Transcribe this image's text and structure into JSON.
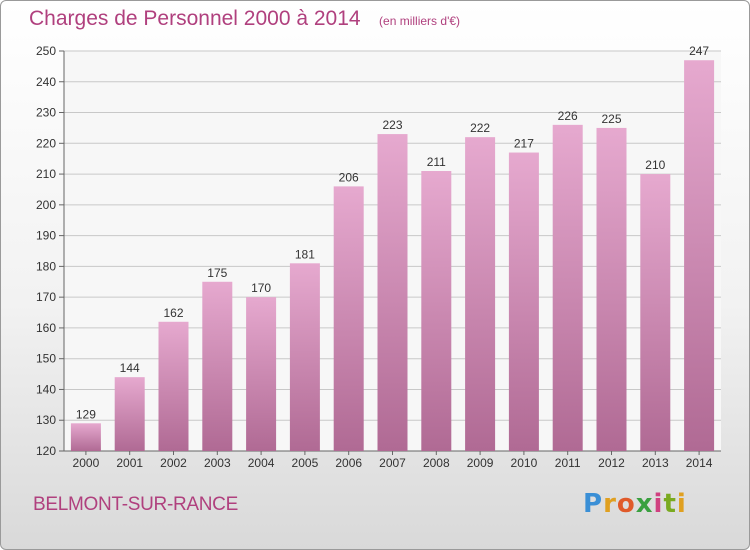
{
  "header": {
    "title": "Charges de Personnel 2000 à 2014",
    "subtitle": "(en milliers d'€)"
  },
  "footer": {
    "town": "BELMONT-SUR-RANCE",
    "logo_text": "Proxiti"
  },
  "colors": {
    "title": "#b0407e",
    "bar_top": "#e6a9cf",
    "bar_bottom": "#b06a94",
    "grid": "#c8c8c8"
  },
  "chart_data": {
    "type": "bar",
    "categories": [
      "2000",
      "2001",
      "2002",
      "2003",
      "2004",
      "2005",
      "2006",
      "2007",
      "2008",
      "2009",
      "2010",
      "2011",
      "2012",
      "2013",
      "2014"
    ],
    "values": [
      129,
      144,
      162,
      175,
      170,
      181,
      206,
      223,
      211,
      222,
      217,
      226,
      225,
      210,
      247
    ],
    "title": "Charges de Personnel 2000 à 2014",
    "subtitle": "(en milliers d'€)",
    "xlabel": "",
    "ylabel": "",
    "ylim": [
      120,
      250
    ],
    "yticks": [
      120,
      130,
      140,
      150,
      160,
      170,
      180,
      190,
      200,
      210,
      220,
      230,
      240,
      250
    ],
    "grid": true,
    "data_labels": true
  }
}
